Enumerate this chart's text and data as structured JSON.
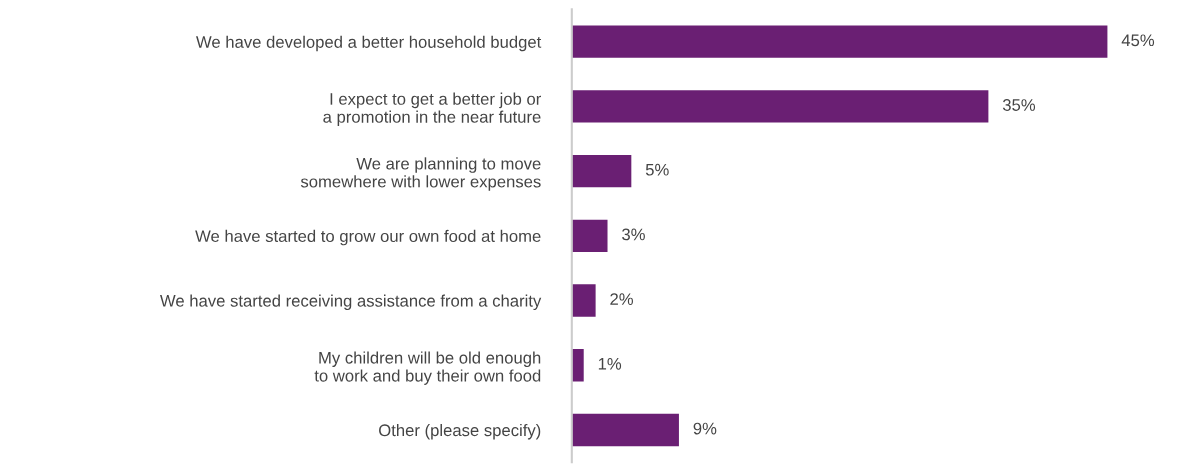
{
  "chart_data": {
    "type": "bar",
    "orientation": "horizontal",
    "categories": [
      "We have developed a better household budget",
      "I expect to get a better job or\na promotion in the near future",
      "We are planning to move\nsomewhere with lower expenses",
      "We have started to grow our own food at home",
      "We have started receiving assistance from a charity",
      "My children will be old enough\nto work and buy their own food",
      "Other (please specify)"
    ],
    "values": [
      45,
      35,
      5,
      3,
      2,
      1,
      9
    ],
    "value_labels": [
      "45%",
      "35%",
      "5%",
      "3%",
      "2%",
      "1%",
      "9%"
    ],
    "color": "#6a1f73",
    "tick_labels": "y",
    "grid": false,
    "legend": false
  }
}
